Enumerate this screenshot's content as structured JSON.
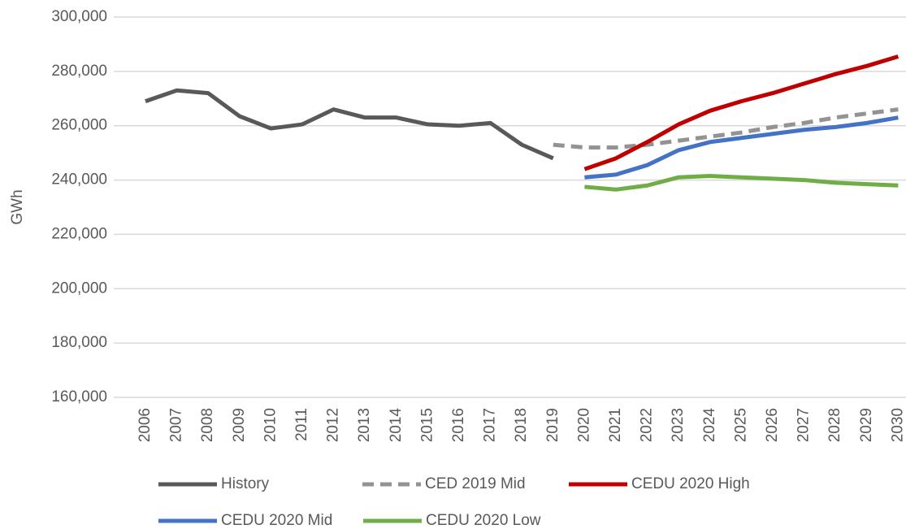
{
  "chart_data": {
    "type": "line",
    "y_label": "GWh",
    "categories": [
      "2006",
      "2007",
      "2008",
      "2009",
      "2010",
      "2011",
      "2012",
      "2013",
      "2014",
      "2015",
      "2016",
      "2017",
      "2018",
      "2019",
      "2020",
      "2021",
      "2022",
      "2023",
      "2024",
      "2025",
      "2026",
      "2027",
      "2028",
      "2029",
      "2030"
    ],
    "series": [
      {
        "name": "History",
        "color": "#595959",
        "dash": false,
        "values": [
          269000,
          273000,
          272000,
          263500,
          259000,
          260500,
          266000,
          263000,
          263000,
          260500,
          260000,
          261000,
          253000,
          248000,
          null,
          null,
          null,
          null,
          null,
          null,
          null,
          null,
          null,
          null,
          null
        ]
      },
      {
        "name": "CED 2019 Mid",
        "color": "#939393",
        "dash": true,
        "values": [
          null,
          null,
          null,
          null,
          null,
          null,
          null,
          null,
          null,
          null,
          null,
          null,
          null,
          253000,
          252000,
          252000,
          253000,
          254500,
          256000,
          257500,
          259500,
          261000,
          263000,
          264500,
          266000
        ]
      },
      {
        "name": "CEDU 2020 High",
        "color": "#c00000",
        "dash": false,
        "values": [
          null,
          null,
          null,
          null,
          null,
          null,
          null,
          null,
          null,
          null,
          null,
          null,
          null,
          null,
          244000,
          248000,
          254000,
          260500,
          265500,
          269000,
          272000,
          275500,
          279000,
          282000,
          285500
        ]
      },
      {
        "name": "CEDU 2020 Mid",
        "color": "#4472c4",
        "dash": false,
        "values": [
          null,
          null,
          null,
          null,
          null,
          null,
          null,
          null,
          null,
          null,
          null,
          null,
          null,
          null,
          241000,
          242000,
          245500,
          251000,
          254000,
          255500,
          257000,
          258500,
          259500,
          261000,
          263000
        ]
      },
      {
        "name": "CEDU 2020 Low",
        "color": "#70ad47",
        "dash": false,
        "values": [
          null,
          null,
          null,
          null,
          null,
          null,
          null,
          null,
          null,
          null,
          null,
          null,
          null,
          null,
          237500,
          236500,
          238000,
          241000,
          241500,
          241000,
          240500,
          240000,
          239000,
          238500,
          238000
        ]
      }
    ],
    "ylim": [
      160000,
      300000
    ],
    "yticks": [
      {
        "value": 160000,
        "label": "160,000"
      },
      {
        "value": 180000,
        "label": "180,000"
      },
      {
        "value": 200000,
        "label": "200,000"
      },
      {
        "value": 220000,
        "label": "220,000"
      },
      {
        "value": 240000,
        "label": "240,000"
      },
      {
        "value": 260000,
        "label": "260,000"
      },
      {
        "value": 280000,
        "label": "280,000"
      },
      {
        "value": 300000,
        "label": "300,000"
      }
    ],
    "grid": true
  }
}
